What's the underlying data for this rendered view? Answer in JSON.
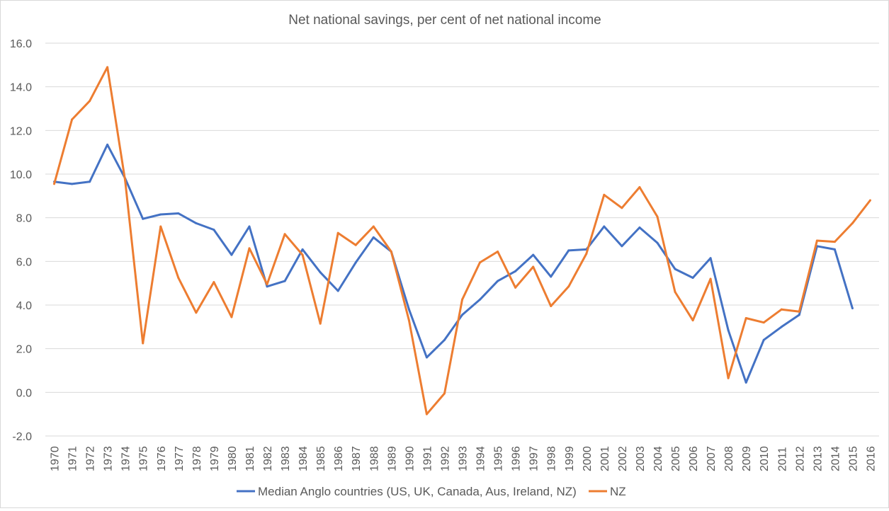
{
  "chart_data": {
    "type": "line",
    "title": "Net national savings, per cent of net national income",
    "xlabel": "",
    "ylabel": "",
    "ylim": [
      -2,
      16
    ],
    "yticks": [
      "16.0",
      "14.0",
      "12.0",
      "10.0",
      "8.0",
      "6.0",
      "4.0",
      "2.0",
      "0.0",
      "-2.0"
    ],
    "grid": true,
    "legend_position": "bottom",
    "categories": [
      "1970",
      "1971",
      "1972",
      "1973",
      "1974",
      "1975",
      "1976",
      "1977",
      "1978",
      "1979",
      "1980",
      "1981",
      "1982",
      "1983",
      "1984",
      "1985",
      "1986",
      "1987",
      "1988",
      "1989",
      "1990",
      "1991",
      "1992",
      "1993",
      "1994",
      "1995",
      "1996",
      "1997",
      "1998",
      "1999",
      "2000",
      "2001",
      "2002",
      "2003",
      "2004",
      "2005",
      "2006",
      "2007",
      "2008",
      "2009",
      "2010",
      "2011",
      "2012",
      "2013",
      "2014",
      "2015",
      "2016"
    ],
    "series": [
      {
        "name": "Median Anglo countries (US, UK, Canada, Aus, Ireland, NZ)",
        "color": "#4472C4",
        "values": [
          9.65,
          9.55,
          9.65,
          11.35,
          9.8,
          7.95,
          8.15,
          8.2,
          7.75,
          7.45,
          6.3,
          7.6,
          4.85,
          5.1,
          6.55,
          5.5,
          4.65,
          5.95,
          7.1,
          6.45,
          3.8,
          1.6,
          2.4,
          3.55,
          4.25,
          5.1,
          5.55,
          6.3,
          5.3,
          6.5,
          6.55,
          7.6,
          6.7,
          7.55,
          6.85,
          5.65,
          5.25,
          6.15,
          2.85,
          0.45,
          2.4,
          3.0,
          3.55,
          6.7,
          6.55,
          3.85,
          null
        ]
      },
      {
        "name": "NZ",
        "color": "#ED7D31",
        "values": [
          9.55,
          12.5,
          13.35,
          14.9,
          9.7,
          2.25,
          7.6,
          5.25,
          3.65,
          5.05,
          3.45,
          6.6,
          4.95,
          7.25,
          6.3,
          3.15,
          7.3,
          6.75,
          7.6,
          6.45,
          3.3,
          -1.0,
          -0.05,
          4.25,
          5.95,
          6.45,
          4.8,
          5.75,
          3.95,
          4.85,
          6.35,
          9.05,
          8.45,
          9.4,
          8.05,
          4.6,
          3.3,
          5.2,
          0.65,
          3.4,
          3.2,
          3.8,
          3.7,
          6.95,
          6.9,
          7.75,
          8.8
        ]
      }
    ]
  }
}
